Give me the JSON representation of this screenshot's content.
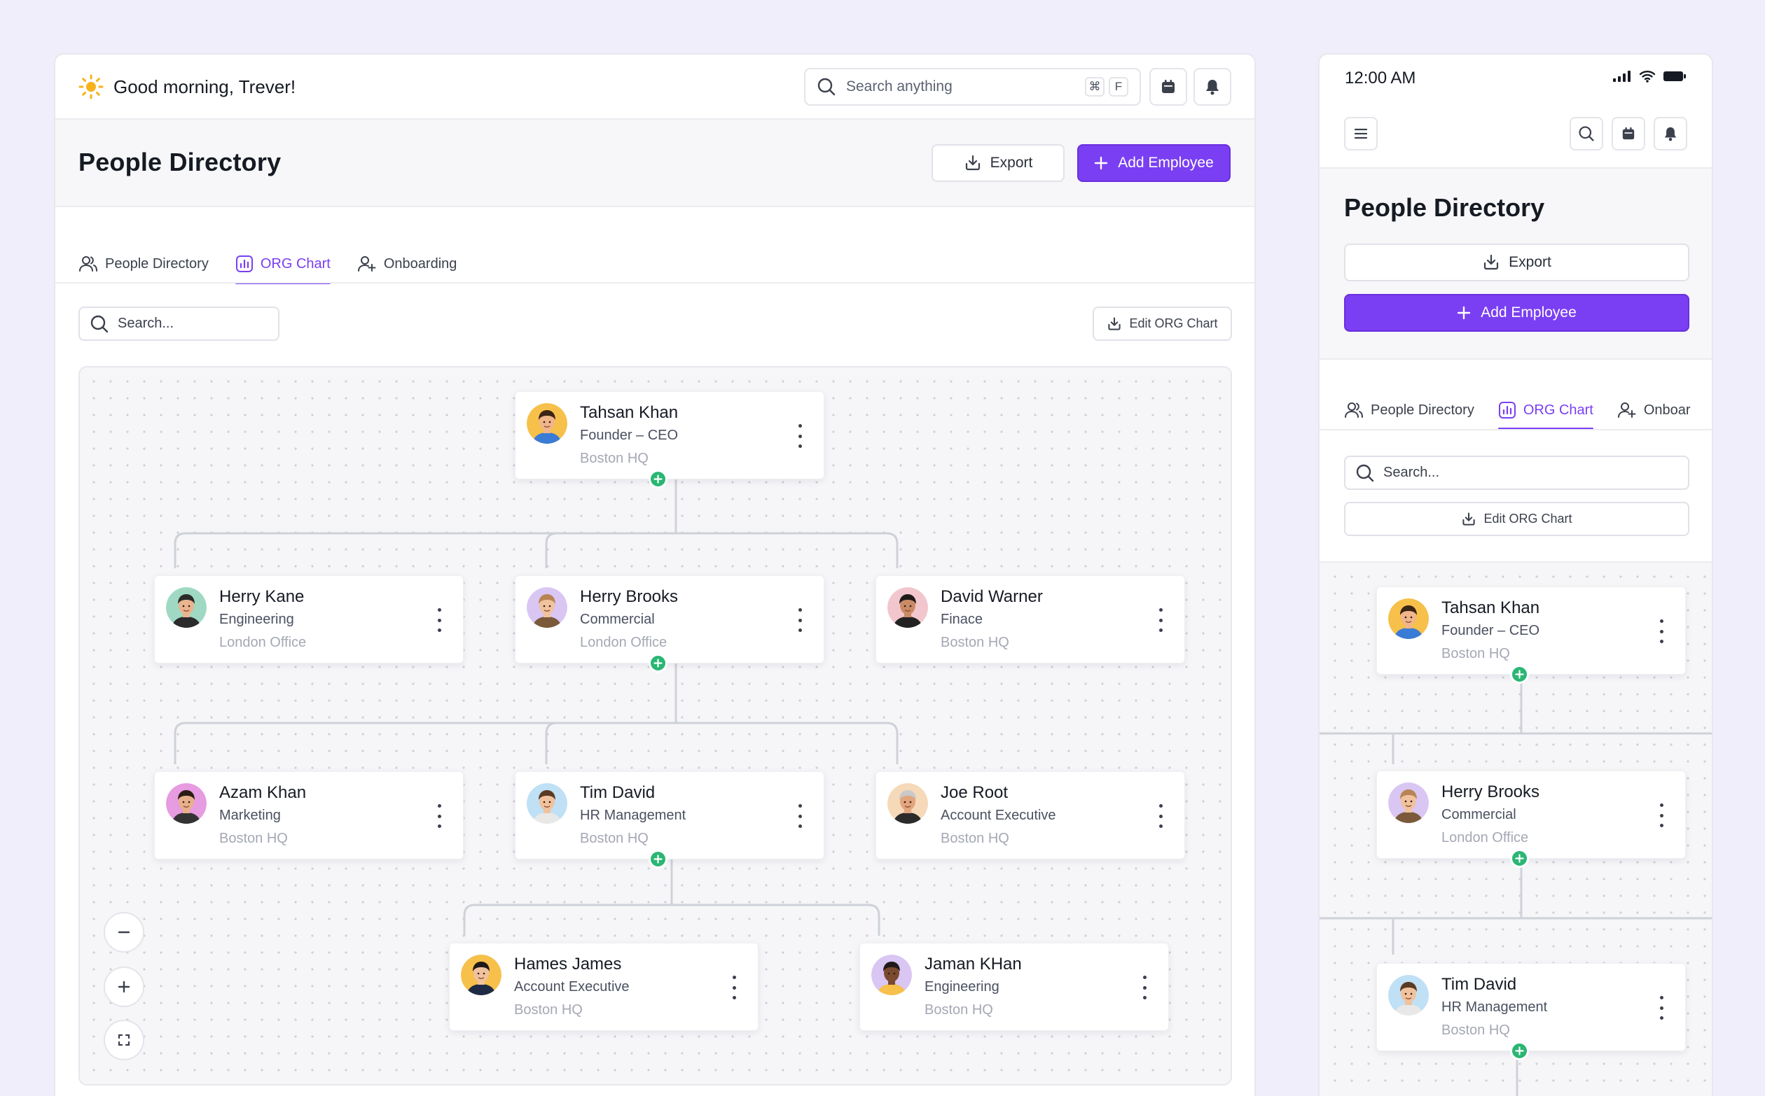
{
  "greeting": "Good morning, Trever!",
  "search": {
    "placeholder": "Search anything",
    "kbd_cmd": "⌘",
    "kbd_key": "F"
  },
  "page": {
    "title": "People Directory",
    "export_label": "Export",
    "add_label": "Add Employee"
  },
  "tabs": [
    {
      "label": "People Directory",
      "icon": "users-icon"
    },
    {
      "label": "ORG Chart",
      "icon": "chart-icon",
      "active": true
    },
    {
      "label": "Onboarding",
      "icon": "user-plus-icon"
    }
  ],
  "mobile_tab_partial": "Onboar",
  "chart_search_placeholder": "Search...",
  "edit_org_label": "Edit ORG Chart",
  "employees": [
    {
      "name": "Tahsan Khan",
      "role": "Founder – CEO",
      "location": "Boston HQ"
    },
    {
      "name": "Herry Kane",
      "role": "Engineering",
      "location": "London Office"
    },
    {
      "name": "Herry Brooks",
      "role": "Commercial",
      "location": "London Office"
    },
    {
      "name": "David Warner",
      "role": "Finace",
      "location": "Boston HQ"
    },
    {
      "name": "Azam Khan",
      "role": "Marketing",
      "location": "Boston HQ"
    },
    {
      "name": "Tim David",
      "role": "HR Management",
      "location": "Boston HQ"
    },
    {
      "name": "Joe Root",
      "role": "Account Executive",
      "location": "Boston HQ"
    },
    {
      "name": "Hames James",
      "role": "Account Executive",
      "location": "Boston HQ"
    },
    {
      "name": "Jaman KHan",
      "role": "Engineering",
      "location": "Boston HQ"
    }
  ],
  "mobile": {
    "time": "12:00 AM"
  },
  "colors": {
    "accent": "#7a3ff2",
    "add_node": "#2bb673",
    "background": "#f1eefc"
  }
}
